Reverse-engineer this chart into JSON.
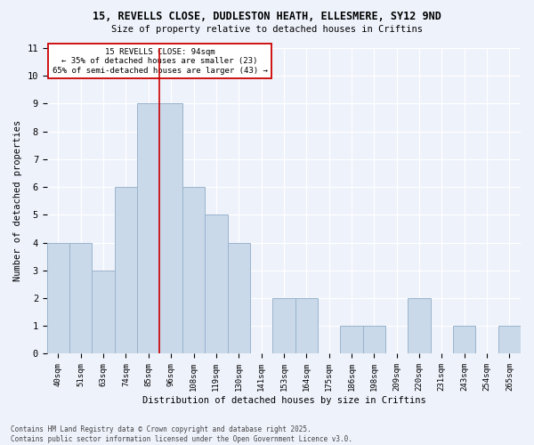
{
  "title1": "15, REVELLS CLOSE, DUDLESTON HEATH, ELLESMERE, SY12 9ND",
  "title2": "Size of property relative to detached houses in Criftins",
  "xlabel": "Distribution of detached houses by size in Criftins",
  "ylabel": "Number of detached properties",
  "categories": [
    "40sqm",
    "51sqm",
    "63sqm",
    "74sqm",
    "85sqm",
    "96sqm",
    "108sqm",
    "119sqm",
    "130sqm",
    "141sqm",
    "153sqm",
    "164sqm",
    "175sqm",
    "186sqm",
    "198sqm",
    "209sqm",
    "220sqm",
    "231sqm",
    "243sqm",
    "254sqm",
    "265sqm"
  ],
  "values": [
    4,
    4,
    3,
    6,
    9,
    9,
    6,
    5,
    4,
    0,
    2,
    2,
    0,
    1,
    1,
    0,
    2,
    0,
    1,
    0,
    1
  ],
  "bar_color": "#c9d9ea",
  "bar_edge_color": "#9ab4cc",
  "vline_color": "#cc0000",
  "vline_x_index": 4.5,
  "ylim": [
    0,
    11
  ],
  "annotation_text": "15 REVELLS CLOSE: 94sqm\n← 35% of detached houses are smaller (23)\n65% of semi-detached houses are larger (43) →",
  "annotation_box_color": "#ffffff",
  "annotation_box_edge": "#cc0000",
  "background_color": "#eef2fb",
  "grid_color": "#ffffff",
  "footer1": "Contains HM Land Registry data © Crown copyright and database right 2025.",
  "footer2": "Contains public sector information licensed under the Open Government Licence v3.0."
}
